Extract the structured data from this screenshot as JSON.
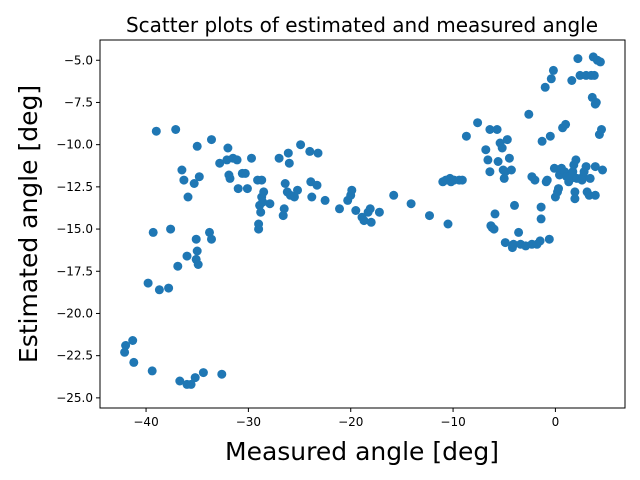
{
  "chart_data": {
    "type": "scatter",
    "title": "Scatter plots of estimated and measured angle",
    "xlabel": "Measured angle [deg]",
    "ylabel": "Estimated angle [deg]",
    "xlim": [
      -44.5,
      6.8
    ],
    "ylim": [
      -25.6,
      -3.8
    ],
    "xticks": [
      -40,
      -30,
      -20,
      -10,
      0
    ],
    "xtick_labels": [
      "−40",
      "−30",
      "−20",
      "−10",
      "0"
    ],
    "yticks": [
      -25.0,
      -22.5,
      -20.0,
      -17.5,
      -15.0,
      -12.5,
      -10.0,
      -7.5,
      -5.0
    ],
    "ytick_labels": [
      "−25.0",
      "−22.5",
      "−20.0",
      "−17.5",
      "−15.0",
      "−12.5",
      "−10.0",
      "−7.5",
      "−5.0"
    ],
    "grid": false,
    "marker_color": "#1f77b4",
    "series": [
      {
        "points": [
          [
            -42.0,
            -21.9
          ],
          [
            -42.1,
            -22.3
          ],
          [
            -41.3,
            -21.6
          ],
          [
            -41.2,
            -22.9
          ],
          [
            -39.8,
            -18.2
          ],
          [
            -39.4,
            -23.4
          ],
          [
            -39.3,
            -15.2
          ],
          [
            -39.0,
            -9.2
          ],
          [
            -38.7,
            -18.6
          ],
          [
            -37.8,
            -18.5
          ],
          [
            -37.6,
            -15.0
          ],
          [
            -37.1,
            -9.1
          ],
          [
            -36.9,
            -17.2
          ],
          [
            -36.7,
            -24.0
          ],
          [
            -36.5,
            -11.5
          ],
          [
            -36.3,
            -12.1
          ],
          [
            -36.0,
            -16.6
          ],
          [
            -36.0,
            -24.2
          ],
          [
            -35.9,
            -13.1
          ],
          [
            -35.6,
            -24.2
          ],
          [
            -35.3,
            -12.3
          ],
          [
            -35.2,
            -23.8
          ],
          [
            -35.1,
            -15.6
          ],
          [
            -35.1,
            -16.8
          ],
          [
            -35.0,
            -16.3
          ],
          [
            -34.9,
            -17.1
          ],
          [
            -35.0,
            -10.1
          ],
          [
            -34.8,
            -11.9
          ],
          [
            -34.4,
            -23.5
          ],
          [
            -33.8,
            -15.2
          ],
          [
            -33.6,
            -9.7
          ],
          [
            -33.6,
            -15.6
          ],
          [
            -32.8,
            -11.1
          ],
          [
            -32.6,
            -23.6
          ],
          [
            -32.1,
            -10.9
          ],
          [
            -32.0,
            -10.2
          ],
          [
            -31.9,
            -11.8
          ],
          [
            -31.8,
            -12.0
          ],
          [
            -31.5,
            -10.8
          ],
          [
            -31.1,
            -10.9
          ],
          [
            -31.0,
            -12.6
          ],
          [
            -30.6,
            -11.7
          ],
          [
            -30.3,
            -11.7
          ],
          [
            -30.1,
            -12.6
          ],
          [
            -29.7,
            -10.8
          ],
          [
            -29.1,
            -12.1
          ],
          [
            -29.0,
            -15.0
          ],
          [
            -29.0,
            -14.7
          ],
          [
            -28.9,
            -13.6
          ],
          [
            -28.8,
            -14.0
          ],
          [
            -28.7,
            -13.1
          ],
          [
            -28.6,
            -13.4
          ],
          [
            -28.5,
            -12.8
          ],
          [
            -28.7,
            -12.1
          ],
          [
            -27.9,
            -13.5
          ],
          [
            -27.0,
            -10.8
          ],
          [
            -26.6,
            -14.2
          ],
          [
            -26.5,
            -13.8
          ],
          [
            -26.4,
            -12.3
          ],
          [
            -26.2,
            -12.8
          ],
          [
            -26.1,
            -10.5
          ],
          [
            -26.0,
            -11.1
          ],
          [
            -25.9,
            -13.0
          ],
          [
            -25.5,
            -13.1
          ],
          [
            -25.2,
            -12.7
          ],
          [
            -24.9,
            -10.0
          ],
          [
            -24.0,
            -10.4
          ],
          [
            -23.9,
            -12.2
          ],
          [
            -23.8,
            -13.1
          ],
          [
            -23.3,
            -12.4
          ],
          [
            -23.2,
            -10.5
          ],
          [
            -22.5,
            -13.3
          ],
          [
            -21.1,
            -13.8
          ],
          [
            -20.3,
            -13.3
          ],
          [
            -20.0,
            -13.0
          ],
          [
            -19.9,
            -12.7
          ],
          [
            -19.5,
            -13.9
          ],
          [
            -18.9,
            -14.3
          ],
          [
            -18.7,
            -14.5
          ],
          [
            -18.3,
            -14.0
          ],
          [
            -18.1,
            -13.8
          ],
          [
            -18.0,
            -14.6
          ],
          [
            -17.2,
            -14.0
          ],
          [
            -15.8,
            -13.0
          ],
          [
            -14.1,
            -13.5
          ],
          [
            -12.3,
            -14.2
          ],
          [
            -11.0,
            -12.2
          ],
          [
            -10.7,
            -12.1
          ],
          [
            -10.5,
            -14.7
          ],
          [
            -10.3,
            -12.0
          ],
          [
            -10.2,
            -12.2
          ],
          [
            -9.9,
            -12.1
          ],
          [
            -9.4,
            -12.1
          ],
          [
            -9.1,
            -12.1
          ],
          [
            -8.7,
            -9.5
          ],
          [
            -7.6,
            -8.7
          ],
          [
            -6.8,
            -10.3
          ],
          [
            -6.6,
            -10.9
          ],
          [
            -6.4,
            -9.1
          ],
          [
            -6.4,
            -11.6
          ],
          [
            -6.3,
            -14.8
          ],
          [
            -6.2,
            -14.9
          ],
          [
            -6.0,
            -15.0
          ],
          [
            -5.9,
            -14.1
          ],
          [
            -5.7,
            -9.1
          ],
          [
            -5.6,
            -11.0
          ],
          [
            -5.4,
            -9.9
          ],
          [
            -5.2,
            -10.2
          ],
          [
            -5.1,
            -11.5
          ],
          [
            -5.0,
            -12.0
          ],
          [
            -4.9,
            -11.6
          ],
          [
            -4.9,
            -15.8
          ],
          [
            -4.7,
            -9.7
          ],
          [
            -4.5,
            -10.8
          ],
          [
            -4.3,
            -11.5
          ],
          [
            -4.2,
            -16.1
          ],
          [
            -4.1,
            -15.9
          ],
          [
            -4.0,
            -13.6
          ],
          [
            -3.6,
            -15.2
          ],
          [
            -3.4,
            -15.9
          ],
          [
            -2.9,
            -16.0
          ],
          [
            -2.6,
            -8.2
          ],
          [
            -2.3,
            -11.9
          ],
          [
            -2.3,
            -15.9
          ],
          [
            -2.0,
            -12.1
          ],
          [
            -1.8,
            -15.9
          ],
          [
            -1.5,
            -15.7
          ],
          [
            -1.4,
            -13.7
          ],
          [
            -1.4,
            -14.4
          ],
          [
            -1.3,
            -9.8
          ],
          [
            -1.0,
            -6.6
          ],
          [
            -0.9,
            -12.2
          ],
          [
            -0.8,
            -12.1
          ],
          [
            -0.6,
            -15.6
          ],
          [
            -0.5,
            -9.5
          ],
          [
            -0.4,
            -6.1
          ],
          [
            -0.2,
            -5.6
          ],
          [
            -0.1,
            -11.4
          ],
          [
            0.0,
            -13.1
          ],
          [
            0.2,
            -12.8
          ],
          [
            0.3,
            -12.6
          ],
          [
            0.4,
            -11.8
          ],
          [
            0.6,
            -11.4
          ],
          [
            0.7,
            -9.0
          ],
          [
            0.9,
            -11.6
          ],
          [
            1.0,
            -8.8
          ],
          [
            1.1,
            -11.9
          ],
          [
            1.3,
            -12.2
          ],
          [
            1.4,
            -11.9
          ],
          [
            1.5,
            -12.0
          ],
          [
            1.6,
            -6.2
          ],
          [
            1.7,
            -11.6
          ],
          [
            1.8,
            -11.2
          ],
          [
            1.9,
            -12.8
          ],
          [
            1.9,
            -13.2
          ],
          [
            2.0,
            -10.9
          ],
          [
            2.1,
            -12.0
          ],
          [
            2.2,
            -4.9
          ],
          [
            2.4,
            -5.9
          ],
          [
            2.6,
            -12.1
          ],
          [
            2.7,
            -11.9
          ],
          [
            2.8,
            -11.6
          ],
          [
            3.0,
            -11.3
          ],
          [
            3.0,
            -5.9
          ],
          [
            3.1,
            -12.8
          ],
          [
            3.3,
            -13.0
          ],
          [
            3.4,
            -12.0
          ],
          [
            3.5,
            -5.9
          ],
          [
            3.6,
            -7.2
          ],
          [
            3.7,
            -4.8
          ],
          [
            3.8,
            -5.9
          ],
          [
            3.9,
            -13.0
          ],
          [
            3.9,
            -11.3
          ],
          [
            3.9,
            -7.6
          ],
          [
            4.0,
            -7.5
          ],
          [
            4.1,
            -5.0
          ],
          [
            4.3,
            -9.4
          ],
          [
            4.5,
            -9.1
          ],
          [
            4.4,
            -5.1
          ],
          [
            4.6,
            -11.5
          ]
        ]
      }
    ]
  }
}
